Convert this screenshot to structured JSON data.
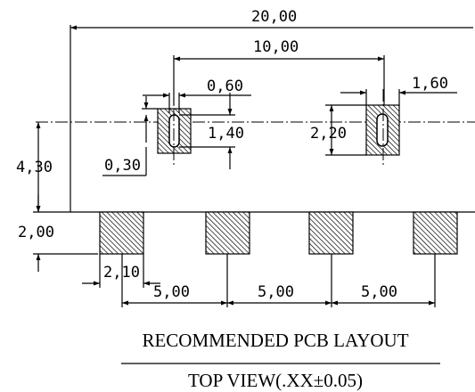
{
  "dimensions": {
    "overall_width": "20,00",
    "hole_pitch": "10,00",
    "slot_width": "0,60",
    "pad_width_right": "1,60",
    "slot_length": "1,40",
    "pad_height_right": "2,20",
    "hole_offset": "4,30",
    "slot_margin": "0,30",
    "pad_offset": "2,00",
    "pad_width": "2,10",
    "pitch_1": "5,00",
    "pitch_2": "5,00",
    "pitch_3": "5,00"
  },
  "caption": {
    "title": "RECOMMENDED PCB LAYOUT",
    "subtitle": "TOP VIEW(.XX±0.05)"
  }
}
